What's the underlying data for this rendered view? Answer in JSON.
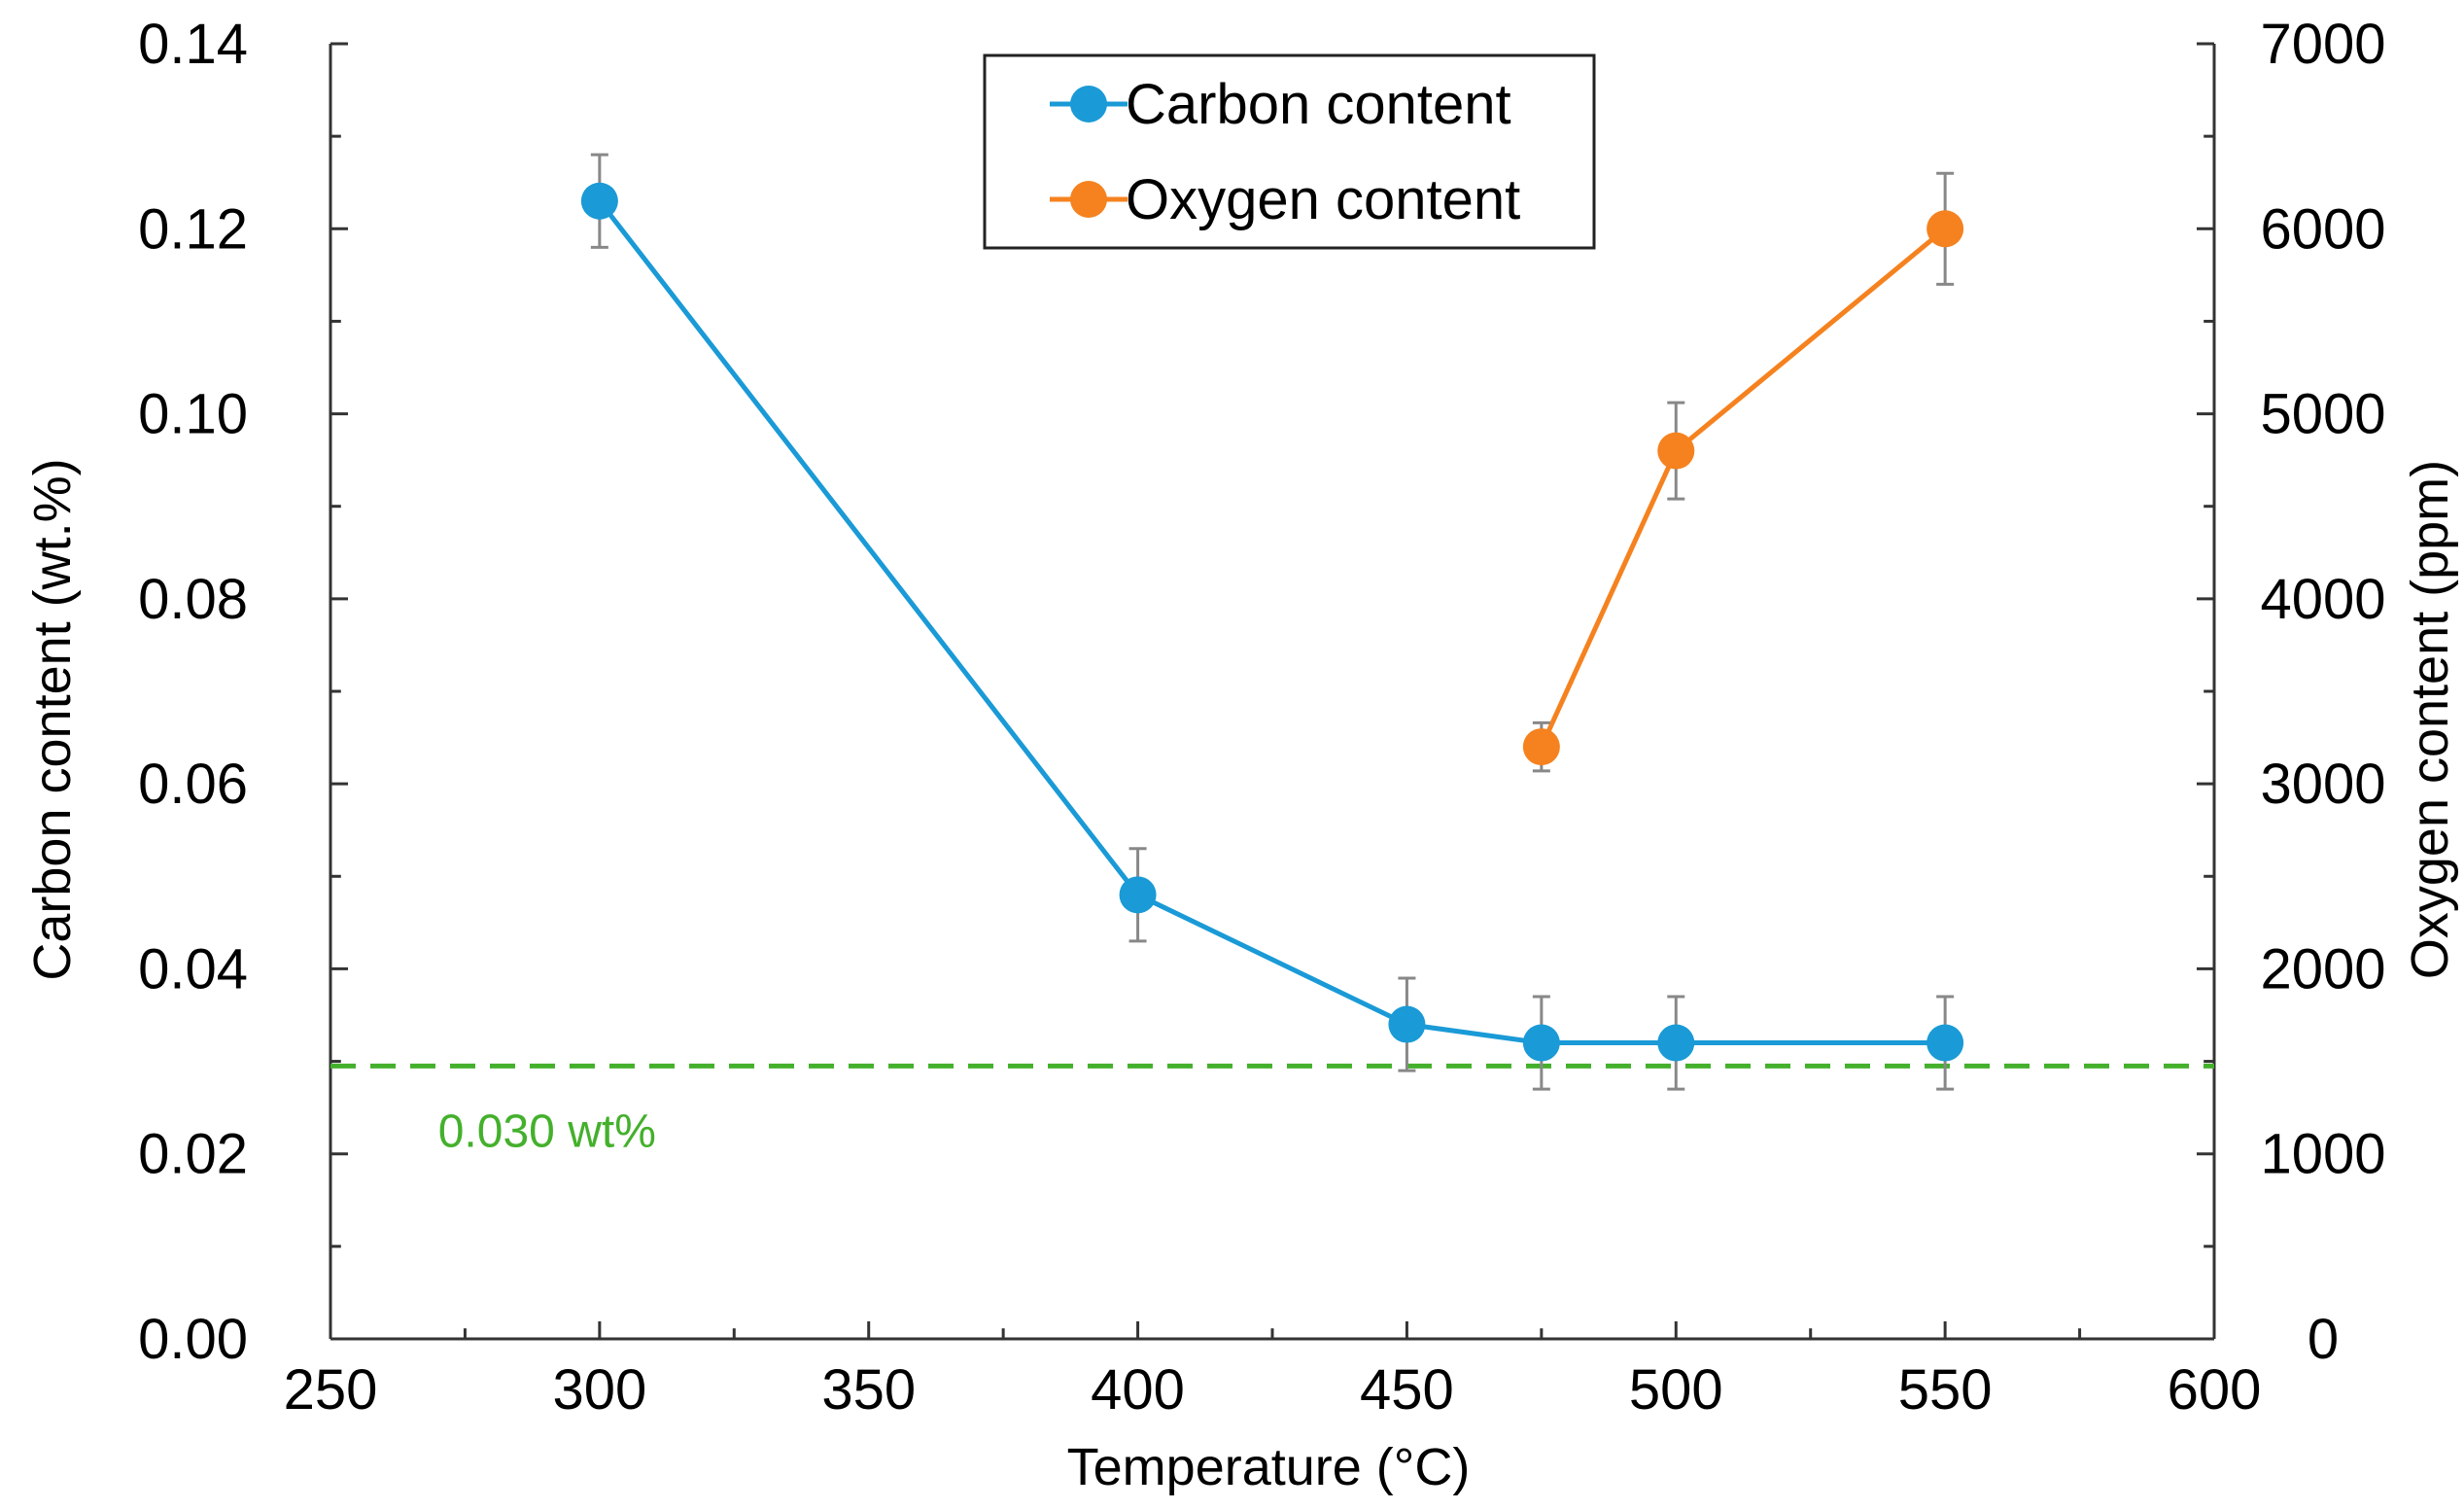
{
  "chart_data": {
    "type": "line",
    "title": "",
    "xlabel": "Temperature (°C)",
    "ylabel": "Carbon content (wt.%)",
    "y2label": "Oxygen content (ppm)",
    "xlim": [
      250,
      600
    ],
    "ylim": [
      0,
      0.14
    ],
    "y2lim": [
      0,
      7000
    ],
    "x_ticks": [
      250,
      300,
      350,
      400,
      450,
      500,
      550,
      600
    ],
    "x_tick_labels": [
      "250",
      "300",
      "350",
      "400",
      "450",
      "500",
      "550",
      "600"
    ],
    "y_ticks": [
      0,
      0.02,
      0.04,
      0.06,
      0.08,
      0.1,
      0.12,
      0.14
    ],
    "y_tick_labels": [
      "0.00",
      "0.02",
      "0.04",
      "0.06",
      "0.08",
      "0.10",
      "0.12",
      "0.14"
    ],
    "y2_ticks": [
      0,
      1000,
      2000,
      3000,
      4000,
      5000,
      6000,
      7000
    ],
    "y2_tick_labels": [
      "0",
      "1000",
      "2000",
      "3000",
      "4000",
      "5000",
      "6000",
      "7000"
    ],
    "grid": false,
    "legend_position": "top-center",
    "series": [
      {
        "name": "Carbon content",
        "axis": "left",
        "color": "#1a9ad6",
        "x": [
          300,
          400,
          450,
          475,
          500,
          550
        ],
        "values": [
          0.123,
          0.048,
          0.034,
          0.032,
          0.032,
          0.032
        ],
        "errors": [
          0.005,
          0.005,
          0.005,
          0.005,
          0.005,
          0.005
        ]
      },
      {
        "name": "Oxygen content",
        "axis": "right",
        "color": "#f5821f",
        "x": [
          475,
          500,
          550
        ],
        "values": [
          3200,
          4800,
          6000
        ],
        "errors": [
          130,
          260,
          300
        ]
      }
    ],
    "reference_lines": [
      {
        "label": "0.030 wt%",
        "y": 0.0295,
        "axis": "left",
        "color": "#44b02c",
        "style": "dashed"
      }
    ]
  }
}
